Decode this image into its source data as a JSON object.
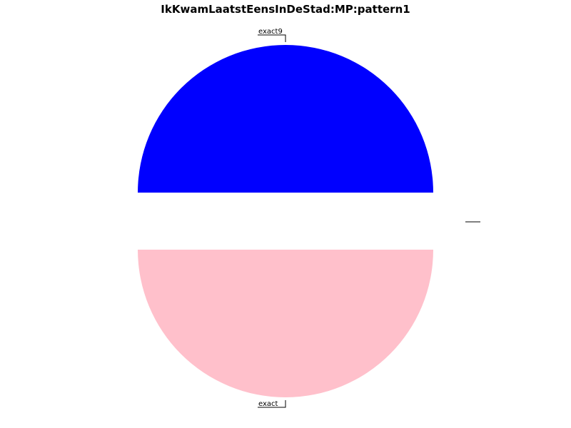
{
  "chart_data": {
    "type": "pie",
    "title": "IkKwamLaatstEensInDeStad:MP:pattern1",
    "slices": [
      {
        "label": "exact9",
        "value": 50,
        "color": "#0000ff"
      },
      {
        "label": "",
        "value": 0,
        "color": "#ffffff"
      },
      {
        "label": "exact",
        "value": 50,
        "color": "#ffc0cb"
      }
    ],
    "start_angle_deg": 0,
    "direction": "counterclockwise",
    "explode": [
      0,
      0,
      0
    ]
  }
}
